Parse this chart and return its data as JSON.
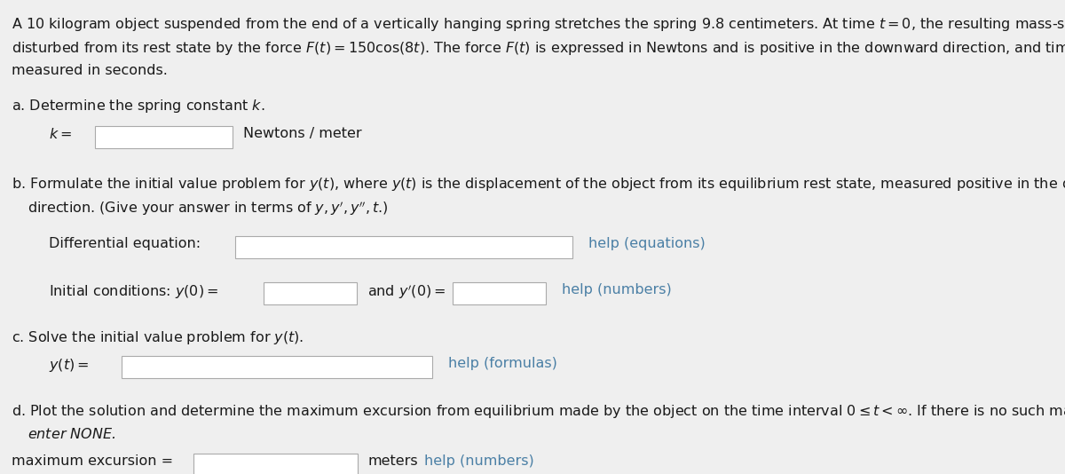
{
  "bg_color": "#efefef",
  "text_color": "#1a1a1a",
  "link_color": "#4a7fa5",
  "box_fill": "#ffffff",
  "box_edge": "#aaaaaa",
  "font_size": 11.5,
  "fig_width": 12.0,
  "fig_height": 5.34
}
